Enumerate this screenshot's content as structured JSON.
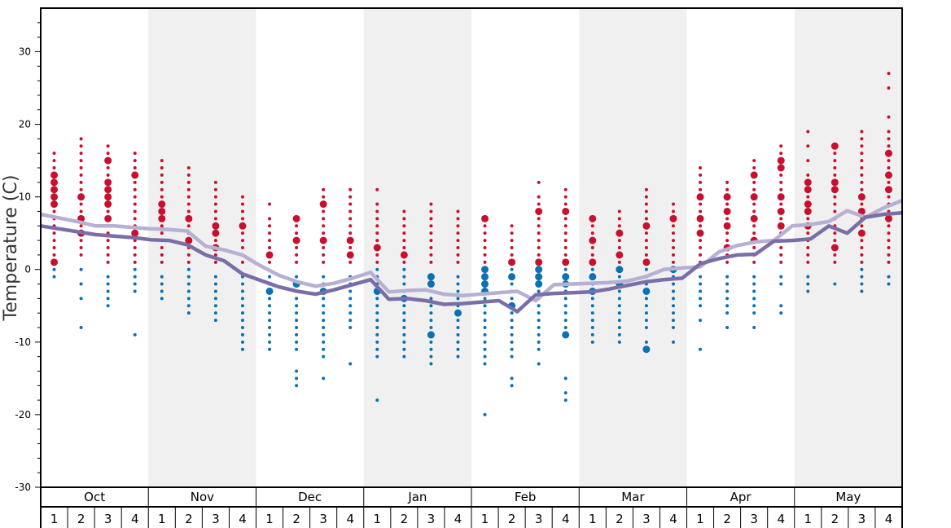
{
  "chart_data": {
    "type": "scatter",
    "title": "",
    "ylabel": "Temperature (C)",
    "xlabel": "",
    "ylim": [
      -30,
      36
    ],
    "yticks": [
      30,
      20,
      10,
      0,
      -10,
      -20,
      -30
    ],
    "ytick_labels": [
      "30",
      "20",
      "10",
      "0",
      "-10",
      "-20",
      "-30"
    ],
    "months": [
      "Oct",
      "Nov",
      "Dec",
      "Jan",
      "Feb",
      "Mar",
      "Apr",
      "May"
    ],
    "weeks": [
      "1",
      "2",
      "3",
      "4"
    ],
    "shaded_months": [
      "Nov",
      "Jan",
      "Mar",
      "May"
    ],
    "grid": false,
    "colors": {
      "warm": "#c8102e",
      "cold": "#0a71b4",
      "max_line": "#b7b0d2",
      "min_line": "#7a6ea6",
      "shade": "#f0f0f0"
    },
    "series": [
      {
        "name": "",
        "line": "upper",
        "values": [
          7.6,
          7.1,
          6.6,
          6.0,
          6.0,
          5.8,
          5.6,
          5.5,
          5.3,
          3.2,
          2.7,
          2.0,
          0.5,
          -0.8,
          -1.7,
          -2.3,
          -1.9,
          -1.2,
          -0.4,
          -3.1,
          -2.9,
          -2.8,
          -3.4,
          -3.6,
          -3.4,
          -3.2,
          -3.0,
          -4.3,
          -2.1,
          -2.0,
          -1.9,
          -1.8,
          -1.6,
          -1.0,
          0.0,
          0.2,
          0.4,
          2.4,
          3.3,
          3.8,
          4.0,
          6.0,
          6.2,
          6.6,
          8.1,
          7.2,
          8.5,
          9.5
        ]
      },
      {
        "name": "",
        "line": "lower",
        "values": [
          6.0,
          5.6,
          5.2,
          4.8,
          4.6,
          4.4,
          4.1,
          4.0,
          3.4,
          2.0,
          1.2,
          -0.6,
          -1.5,
          -2.4,
          -3.0,
          -3.4,
          -2.8,
          -2.1,
          -1.4,
          -4.1,
          -4.0,
          -4.3,
          -4.8,
          -4.7,
          -4.5,
          -4.3,
          -5.8,
          -3.5,
          -3.3,
          -3.2,
          -3.1,
          -2.7,
          -2.2,
          -1.7,
          -1.4,
          -1.2,
          0.8,
          1.5,
          2.0,
          2.1,
          3.9,
          4.0,
          4.2,
          6.0,
          5.0,
          7.2,
          7.6,
          7.8
        ]
      }
    ],
    "point_scale": {
      "small": 1,
      "medium": 2,
      "large": 3
    },
    "points_by_week": [
      {
        "month": "Oct",
        "week": 1,
        "temps": [
          1,
          2,
          3,
          4,
          5,
          6,
          7,
          8,
          9,
          10,
          11,
          12,
          13,
          14,
          15,
          16,
          -1,
          0
        ],
        "emph": [
          13,
          12,
          11,
          10,
          9,
          1
        ]
      },
      {
        "month": "Oct",
        "week": 2,
        "temps": [
          2,
          3,
          4,
          5,
          6,
          7,
          8,
          9,
          10,
          11,
          12,
          13,
          14,
          15,
          16,
          17,
          18,
          0,
          -2,
          -4,
          -8
        ],
        "emph": [
          10,
          7,
          5
        ]
      },
      {
        "month": "Oct",
        "week": 3,
        "temps": [
          1,
          2,
          3,
          4,
          5,
          6,
          7,
          8,
          9,
          10,
          11,
          12,
          13,
          14,
          15,
          16,
          17,
          -1,
          -2,
          -3,
          -4,
          -5
        ],
        "emph": [
          15,
          12,
          11,
          10,
          9,
          7
        ]
      },
      {
        "month": "Oct",
        "week": 4,
        "temps": [
          1,
          2,
          3,
          4,
          5,
          6,
          7,
          8,
          9,
          10,
          11,
          12,
          13,
          14,
          15,
          16,
          0,
          -1,
          -2,
          -3,
          -9
        ],
        "emph": [
          13,
          5
        ]
      },
      {
        "month": "Nov",
        "week": 1,
        "temps": [
          1,
          2,
          3,
          4,
          5,
          6,
          7,
          8,
          9,
          10,
          11,
          12,
          13,
          14,
          15,
          -1,
          -2,
          -3,
          -4
        ],
        "emph": [
          9,
          8,
          7
        ]
      },
      {
        "month": "Nov",
        "week": 2,
        "temps": [
          1,
          2,
          3,
          4,
          5,
          6,
          7,
          8,
          9,
          10,
          11,
          12,
          13,
          14,
          0,
          -1,
          -2,
          -3,
          -4,
          -5,
          -6
        ],
        "emph": [
          7,
          4
        ]
      },
      {
        "month": "Nov",
        "week": 3,
        "temps": [
          1,
          2,
          3,
          4,
          5,
          6,
          7,
          8,
          9,
          10,
          11,
          12,
          -1,
          -2,
          -3,
          -4,
          -5,
          -6,
          -7
        ],
        "emph": [
          6,
          5,
          3
        ]
      },
      {
        "month": "Nov",
        "week": 4,
        "temps": [
          1,
          2,
          3,
          4,
          5,
          6,
          7,
          8,
          9,
          10,
          -1,
          -2,
          -3,
          -4,
          -5,
          -6,
          -7,
          -8,
          -9,
          -10,
          -11
        ],
        "emph": [
          6
        ]
      },
      {
        "month": "Dec",
        "week": 1,
        "temps": [
          1,
          2,
          3,
          4,
          5,
          6,
          7,
          9,
          -1,
          -2,
          -3,
          -4,
          -5,
          -6,
          -7,
          -8,
          -9,
          -10,
          -11
        ],
        "emph": [
          2,
          -3
        ]
      },
      {
        "month": "Dec",
        "week": 2,
        "temps": [
          1,
          2,
          3,
          4,
          5,
          6,
          7,
          -1,
          -2,
          -3,
          -4,
          -5,
          -6,
          -7,
          -8,
          -9,
          -10,
          -11,
          -14,
          -15,
          -16
        ],
        "emph": [
          7,
          4,
          -2
        ]
      },
      {
        "month": "Dec",
        "week": 3,
        "temps": [
          1,
          2,
          3,
          4,
          5,
          6,
          7,
          8,
          9,
          10,
          11,
          -1,
          -2,
          -3,
          -4,
          -5,
          -6,
          -7,
          -8,
          -9,
          -10,
          -11,
          -12,
          -15
        ],
        "emph": [
          9,
          4,
          -3
        ]
      },
      {
        "month": "Dec",
        "week": 4,
        "temps": [
          1,
          2,
          3,
          4,
          5,
          6,
          7,
          8,
          9,
          10,
          11,
          -1,
          -2,
          -3,
          -4,
          -5,
          -6,
          -7,
          -8,
          -13
        ],
        "emph": [
          4,
          2
        ]
      },
      {
        "month": "Jan",
        "week": 1,
        "temps": [
          1,
          2,
          3,
          4,
          5,
          6,
          7,
          8,
          9,
          11,
          0,
          -1,
          -2,
          -3,
          -4,
          -5,
          -6,
          -7,
          -8,
          -9,
          -10,
          -11,
          -12,
          -18
        ],
        "emph": [
          3,
          -3
        ]
      },
      {
        "month": "Jan",
        "week": 2,
        "temps": [
          1,
          2,
          3,
          4,
          5,
          6,
          7,
          8,
          0,
          -1,
          -2,
          -3,
          -4,
          -5,
          -6,
          -7,
          -8,
          -9,
          -10,
          -11,
          -12
        ],
        "emph": [
          2,
          -4
        ]
      },
      {
        "month": "Jan",
        "week": 3,
        "temps": [
          1,
          2,
          3,
          4,
          5,
          6,
          7,
          8,
          9,
          -1,
          -2,
          -3,
          -4,
          -5,
          -6,
          -7,
          -8,
          -9,
          -10,
          -11,
          -12,
          -13
        ],
        "emph": [
          -1,
          -2,
          -9
        ]
      },
      {
        "month": "Jan",
        "week": 4,
        "temps": [
          1,
          2,
          3,
          4,
          5,
          6,
          7,
          8,
          -1,
          -2,
          -3,
          -4,
          -5,
          -6,
          -7,
          -8,
          -9,
          -10,
          -11,
          -12
        ],
        "emph": [
          -6
        ]
      },
      {
        "month": "Feb",
        "week": 1,
        "temps": [
          1,
          2,
          3,
          4,
          5,
          6,
          7,
          0,
          -1,
          -2,
          -3,
          -4,
          -5,
          -6,
          -7,
          -8,
          -9,
          -10,
          -11,
          -12,
          -13,
          -20
        ],
        "emph": [
          7,
          0,
          -1,
          -2,
          -3
        ]
      },
      {
        "month": "Feb",
        "week": 2,
        "temps": [
          1,
          2,
          3,
          4,
          5,
          6,
          0,
          -1,
          -2,
          -3,
          -4,
          -5,
          -6,
          -7,
          -8,
          -9,
          -10,
          -11,
          -12,
          -15,
          -16
        ],
        "emph": [
          1,
          -1,
          -5
        ]
      },
      {
        "month": "Feb",
        "week": 3,
        "temps": [
          1,
          2,
          3,
          4,
          5,
          6,
          7,
          8,
          9,
          10,
          12,
          0,
          -1,
          -2,
          -3,
          -4,
          -5,
          -6,
          -7,
          -8,
          -9,
          -10,
          -11,
          -13
        ],
        "emph": [
          8,
          1,
          0,
          -1,
          -2
        ]
      },
      {
        "month": "Feb",
        "week": 4,
        "temps": [
          1,
          2,
          3,
          4,
          5,
          6,
          7,
          8,
          9,
          10,
          11,
          0,
          -1,
          -2,
          -3,
          -4,
          -5,
          -6,
          -7,
          -8,
          -9,
          -15,
          -17,
          -18
        ],
        "emph": [
          8,
          1,
          -1,
          -2,
          -9
        ]
      },
      {
        "month": "Mar",
        "week": 1,
        "temps": [
          1,
          2,
          3,
          4,
          5,
          6,
          7,
          0,
          -1,
          -2,
          -3,
          -4,
          -5,
          -6,
          -7,
          -8,
          -9,
          -10
        ],
        "emph": [
          7,
          4,
          1,
          -1,
          -3
        ]
      },
      {
        "month": "Mar",
        "week": 2,
        "temps": [
          1,
          2,
          3,
          4,
          5,
          6,
          7,
          8,
          0,
          -1,
          -2,
          -3,
          -4,
          -5,
          -6,
          -7,
          -8,
          -9,
          -10
        ],
        "emph": [
          5,
          2,
          0,
          -2
        ]
      },
      {
        "month": "Mar",
        "week": 3,
        "temps": [
          1,
          2,
          3,
          4,
          5,
          6,
          7,
          8,
          9,
          10,
          11,
          0,
          -1,
          -2,
          -3,
          -4,
          -5,
          -6,
          -7,
          -8,
          -10,
          -11
        ],
        "emph": [
          6,
          1,
          -3,
          -11
        ]
      },
      {
        "month": "Mar",
        "week": 4,
        "temps": [
          1,
          2,
          3,
          4,
          5,
          6,
          7,
          8,
          9,
          0,
          -1,
          -2,
          -3,
          -4,
          -5,
          -6,
          -7,
          -8,
          -10
        ],
        "emph": [
          7,
          0
        ]
      },
      {
        "month": "Apr",
        "week": 1,
        "temps": [
          1,
          2,
          3,
          4,
          5,
          6,
          7,
          8,
          9,
          10,
          11,
          12,
          13,
          14,
          -1,
          -2,
          -3,
          -4,
          -5,
          -7,
          -11
        ],
        "emph": [
          10,
          7,
          5
        ]
      },
      {
        "month": "Apr",
        "week": 2,
        "temps": [
          1,
          2,
          3,
          4,
          5,
          6,
          7,
          8,
          9,
          10,
          11,
          12,
          -1,
          -2,
          -3,
          -4,
          -5,
          -6,
          -8
        ],
        "emph": [
          10,
          8,
          6,
          3
        ]
      },
      {
        "month": "Apr",
        "week": 3,
        "temps": [
          1,
          2,
          3,
          4,
          5,
          6,
          7,
          8,
          9,
          10,
          11,
          12,
          13,
          14,
          15,
          -1,
          -2,
          -3,
          -4,
          -5,
          -6,
          -8
        ],
        "emph": [
          13,
          10,
          7,
          4
        ]
      },
      {
        "month": "Apr",
        "week": 4,
        "temps": [
          1,
          2,
          3,
          4,
          5,
          6,
          7,
          8,
          9,
          10,
          11,
          12,
          13,
          14,
          15,
          16,
          17,
          -1,
          -2,
          -5,
          -6
        ],
        "emph": [
          15,
          14,
          10,
          8,
          6
        ]
      },
      {
        "month": "May",
        "week": 1,
        "temps": [
          1,
          2,
          3,
          4,
          5,
          6,
          7,
          8,
          9,
          10,
          11,
          12,
          13,
          15,
          17,
          19,
          -1,
          -2,
          -3
        ],
        "emph": [
          12,
          11,
          9,
          8,
          6
        ]
      },
      {
        "month": "May",
        "week": 2,
        "temps": [
          1,
          2,
          3,
          4,
          5,
          6,
          7,
          8,
          9,
          10,
          11,
          12,
          13,
          14,
          15,
          16,
          17,
          -2
        ],
        "emph": [
          17,
          12,
          11,
          3
        ]
      },
      {
        "month": "May",
        "week": 3,
        "temps": [
          1,
          2,
          3,
          4,
          5,
          6,
          7,
          8,
          9,
          10,
          11,
          12,
          13,
          14,
          15,
          16,
          17,
          18,
          19,
          0,
          -1,
          -2,
          -3
        ],
        "emph": [
          10,
          8,
          5
        ]
      },
      {
        "month": "May",
        "week": 4,
        "temps": [
          1,
          2,
          3,
          4,
          5,
          6,
          7,
          8,
          9,
          10,
          11,
          12,
          13,
          14,
          15,
          16,
          17,
          18,
          19,
          21,
          25,
          27,
          -1,
          -2
        ],
        "emph": [
          16,
          13,
          11,
          7
        ]
      }
    ]
  }
}
